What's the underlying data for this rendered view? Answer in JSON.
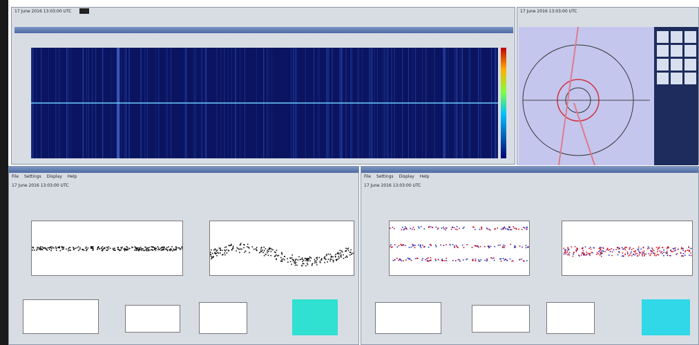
{
  "left_header": "17 June 2016 13:03:00 UTC",
  "right_header": "17 June 2016 13:03:00 UTC",
  "bottom_left": {
    "header": "17 June 2016 13:03:00 UTC",
    "menu": [
      "File",
      "Settings",
      "Display",
      "Help"
    ]
  },
  "bottom_right": {
    "header": "17 June 2016 13:03:00 UTC",
    "menu": [
      "File",
      "Settings",
      "Display",
      "Help"
    ]
  }
}
